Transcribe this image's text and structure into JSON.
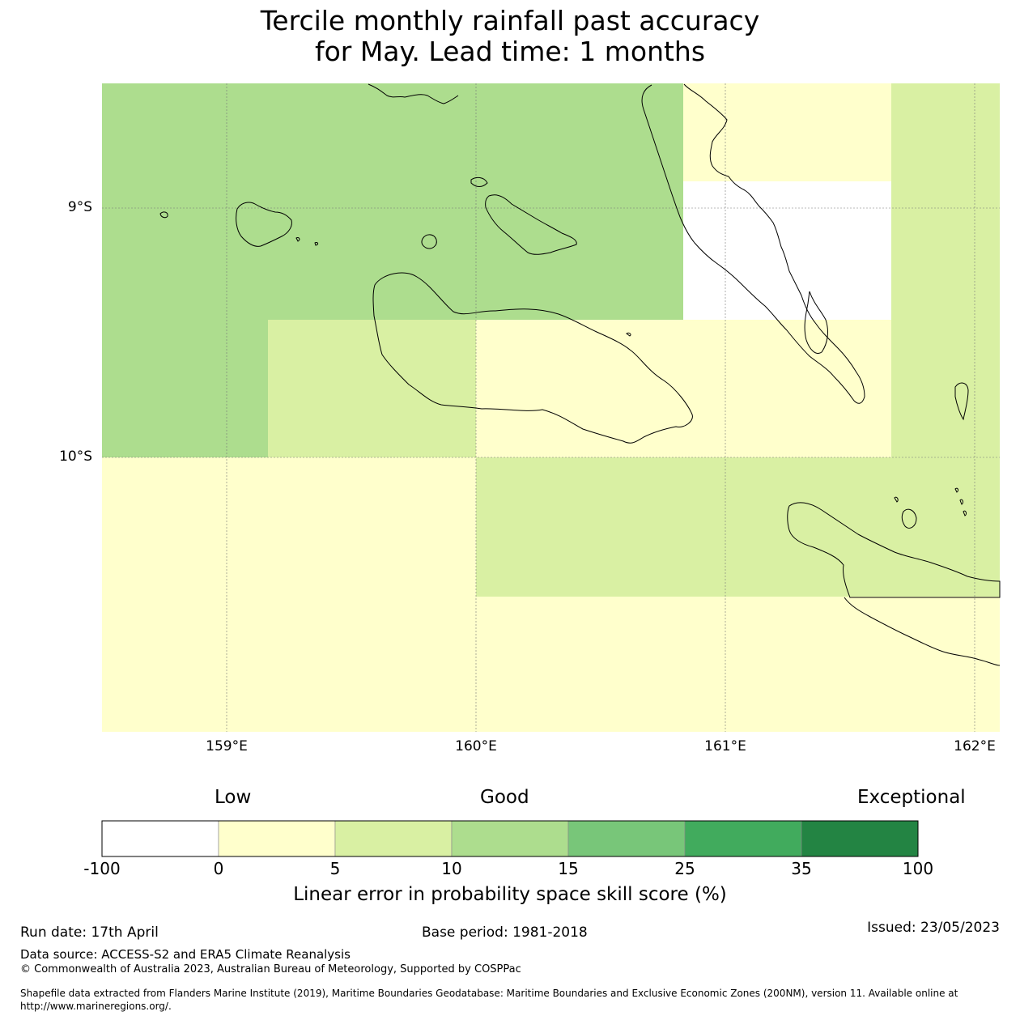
{
  "title": {
    "line1": "Tercile monthly rainfall past accuracy",
    "line2": "for May. Lead time: 1 months"
  },
  "map": {
    "lat_labels": [
      "9°S",
      "10°S"
    ],
    "lon_labels": [
      "159°E",
      "160°E",
      "161°E",
      "162°E"
    ],
    "cell_colors": {
      "white": "#ffffff",
      "c0_5": "#ffffcc",
      "c5_10": "#d9f0a3",
      "c10_15": "#addd8e"
    }
  },
  "colorbar": {
    "headers": {
      "low": "Low",
      "good": "Good",
      "exceptional": "Exceptional"
    },
    "ticks": [
      "-100",
      "0",
      "5",
      "10",
      "15",
      "25",
      "35",
      "100"
    ],
    "colors": [
      "#ffffff",
      "#ffffcc",
      "#d9f0a3",
      "#addd8e",
      "#78c679",
      "#41ab5d",
      "#238443"
    ],
    "label": "Linear error in probability space skill score (%)"
  },
  "footer": {
    "run_date": "Run date: 17th April",
    "base_period": "Base period: 1981-2018",
    "issued": "Issued: 23/05/2023",
    "data_source": "Data source: ACCESS-S2 and ERA5 Climate Reanalysis",
    "copyright": "© Commonwealth of Australia 2023, Australian Bureau of Meteorology, Supported by COSPPac",
    "shapefile_line1": "Shapefile data extracted from Flanders Marine Institute (2019), Maritime Boundaries Geodatabase: Maritime Boundaries and Exclusive Economic Zones (200NM), version 11. Available online at",
    "shapefile_line2": "http://www.marineregions.org/."
  }
}
